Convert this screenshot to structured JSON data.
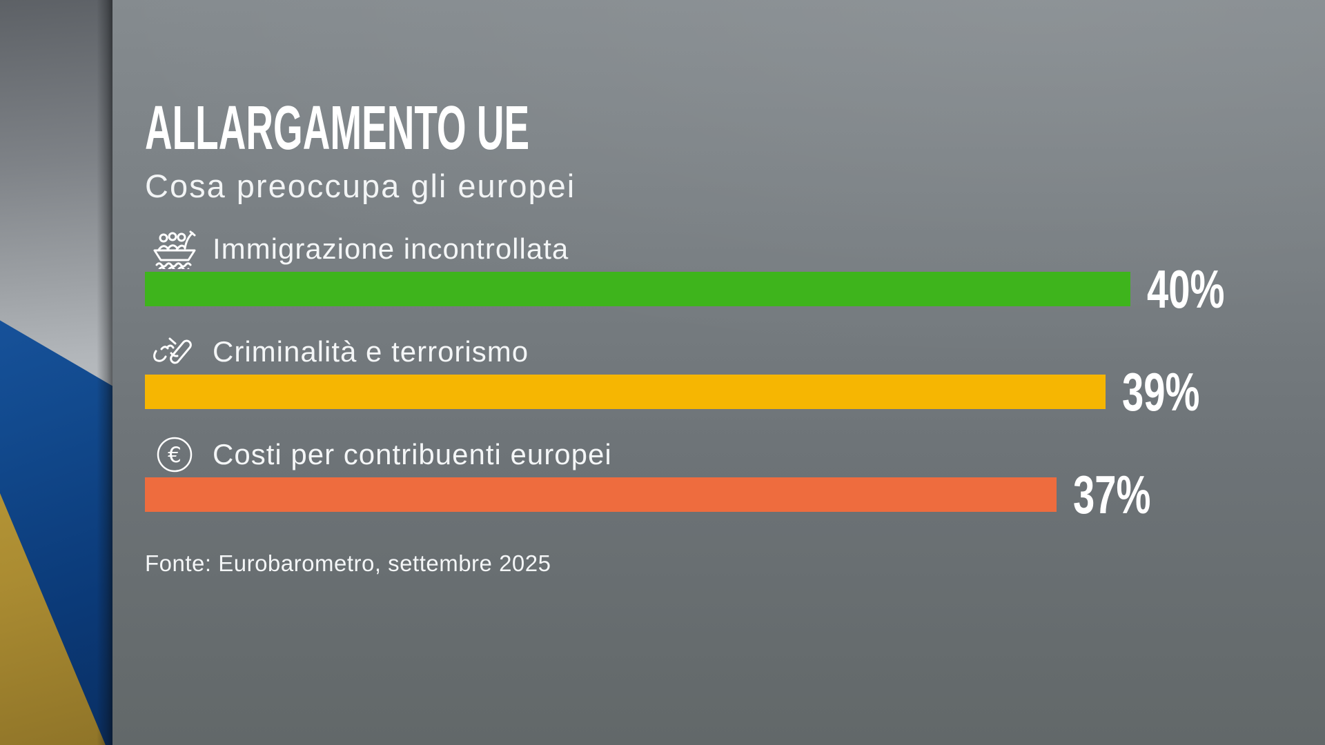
{
  "header": {
    "title": "ALLARGAMENTO UE",
    "subtitle": "Cosa preoccupa gli europei"
  },
  "chart_data": {
    "type": "bar",
    "orientation": "horizontal",
    "title": "ALLARGAMENTO UE",
    "subtitle": "Cosa preoccupa gli europei",
    "categories": [
      "Immigrazione incontrollata",
      "Criminalità e terrorismo",
      "Costi per contribuenti europei"
    ],
    "values": [
      40,
      39,
      37
    ],
    "value_labels": [
      "40%",
      "39%",
      "37%"
    ],
    "unit": "%",
    "colors": [
      "#3eb41c",
      "#f6b602",
      "#ee6c3e"
    ],
    "icons": [
      "migrant-boat-icon",
      "hand-knife-icon",
      "euro-coin-icon"
    ],
    "xlim": [
      0,
      45
    ],
    "grid": false,
    "legend": false,
    "source": "Fonte: Eurobarometro, settembre 2025"
  },
  "footer": {
    "source": "Fonte: Eurobarometro, settembre 2025"
  },
  "style": {
    "panel_gray_top": "#858b8f",
    "panel_gray_bottom": "#626869",
    "strip_silver": "#b2b6ba",
    "flag_blue": "#1a57a2",
    "flag_gold": "#c2a23c",
    "text_color": "#ffffff"
  }
}
